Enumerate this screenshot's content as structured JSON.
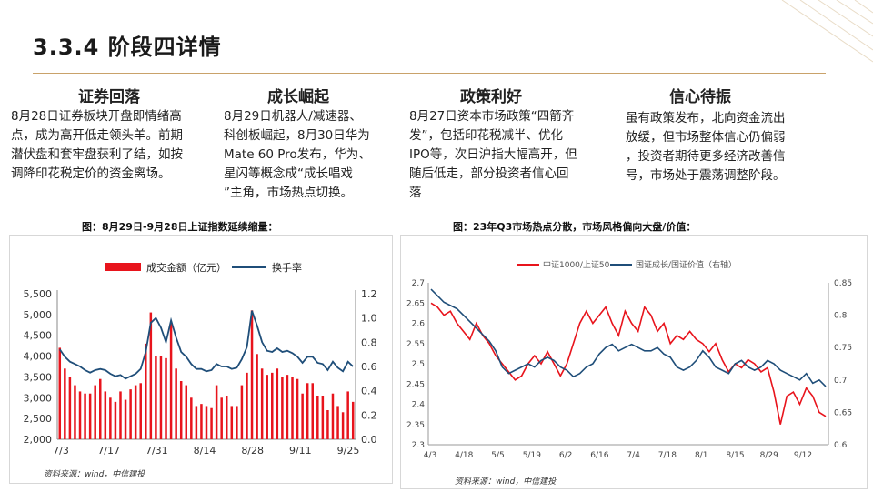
{
  "page": {
    "title": "3.3.4 阶段四详情"
  },
  "columns": [
    {
      "heading": "证券回落",
      "text": "8月28日证券板块开盘即情绪高\n点，成为高开低走领头羊。前期\n潜伏盘和套牢盘获利了结，如按\n调降印花税定价的资金离场。"
    },
    {
      "heading": "成长崛起",
      "text": "8月29日机器人/减速器、\n科创板崛起，8月30日华为\nMate 60 Pro发布，华为、\n星闪等概念成“成长唱戏\n”主角，市场热点切换。"
    },
    {
      "heading": "政策利好",
      "text": "8月27日资本市场政策“四箭齐\n发”，包括印花税减半、优化\nIPO等，次日沪指大幅高开，但\n随后低走，部分投资者信心回\n落"
    },
    {
      "heading": "信心待振",
      "text": "虽有政策发布，北向资金流出\n放缓，但市场整体信心仍偏弱\n，投资者期待更多经济改善信\n号，市场处于震荡调整阶段。"
    }
  ],
  "figures": {
    "left_caption": "图：8月29日-9月28日上证指数延续缩量：",
    "right_caption": "图：23年Q3市场热点分散，市场风格偏向大盘/价值：",
    "left_source": "资料来源：wind，中信建投",
    "right_source": "资料来源：wind，中信建投"
  },
  "colors": {
    "red": "#e8141c",
    "navy": "#1f4e79",
    "rule": "#c9a26a"
  },
  "chart_data": [
    {
      "type": "bar",
      "legend": [
        "成交金额（亿元）",
        "换手率"
      ],
      "x_tick_labels": [
        "7/3",
        "7/17",
        "7/31",
        "8/14",
        "8/28",
        "9/11",
        "9/25"
      ],
      "y_left_ticks": [
        "2,000",
        "2,500",
        "3,000",
        "3,500",
        "4,000",
        "4,500",
        "5,000",
        "5,500"
      ],
      "y_right_ticks": [
        "0.0",
        "0.2",
        "0.4",
        "0.6",
        "0.8",
        "1.0",
        "1.2"
      ],
      "ylim_left": [
        2000,
        5500
      ],
      "ylim_right": [
        0,
        1.2
      ],
      "series": [
        {
          "name": "成交金额（亿元）",
          "axis": "left",
          "kind": "bar",
          "values": [
            4200,
            3700,
            3500,
            3300,
            3150,
            3100,
            3100,
            3300,
            3450,
            3150,
            3000,
            2900,
            3150,
            2950,
            3200,
            3300,
            3350,
            4300,
            5050,
            4000,
            4000,
            3950,
            4800,
            3700,
            3400,
            3300,
            3000,
            2800,
            2850,
            2800,
            2750,
            3300,
            3000,
            3050,
            2800,
            2800,
            3300,
            3600,
            5100,
            4050,
            3700,
            3550,
            3600,
            3700,
            3500,
            3550,
            3500,
            3450,
            3100,
            3350,
            3350,
            3050,
            3050,
            2700,
            3100,
            2800,
            2650,
            3150,
            2900
          ]
        },
        {
          "name": "换手率",
          "axis": "right",
          "kind": "line",
          "values": [
            0.74,
            0.68,
            0.64,
            0.62,
            0.6,
            0.57,
            0.55,
            0.57,
            0.58,
            0.57,
            0.54,
            0.52,
            0.53,
            0.5,
            0.52,
            0.54,
            0.58,
            0.72,
            0.96,
            1.0,
            0.92,
            0.8,
            0.98,
            0.84,
            0.72,
            0.68,
            0.62,
            0.58,
            0.58,
            0.56,
            0.57,
            0.62,
            0.6,
            0.6,
            0.58,
            0.59,
            0.66,
            0.76,
            1.06,
            0.94,
            0.8,
            0.73,
            0.72,
            0.75,
            0.72,
            0.73,
            0.71,
            0.68,
            0.63,
            0.68,
            0.68,
            0.63,
            0.62,
            0.57,
            0.64,
            0.59,
            0.56,
            0.64,
            0.6
          ]
        }
      ]
    },
    {
      "type": "line",
      "legend": [
        "中证1000/上证50",
        "国证成长/国证价值（右轴）"
      ],
      "x_tick_labels": [
        "4/3",
        "4/18",
        "5/5",
        "5/19",
        "6/2",
        "6/16",
        "7/4",
        "7/18",
        "8/1",
        "8/15",
        "8/29",
        "9/12"
      ],
      "y_left_ticks": [
        "2.3",
        "2.35",
        "2.4",
        "2.45",
        "2.5",
        "2.55",
        "2.6",
        "2.65",
        "2.7"
      ],
      "y_right_ticks": [
        "0.6",
        "0.65",
        "0.7",
        "0.75",
        "0.8",
        "0.85"
      ],
      "ylim_left": [
        2.3,
        2.7
      ],
      "ylim_right": [
        0.6,
        0.85
      ],
      "series": [
        {
          "name": "中证1000/上证50",
          "axis": "left",
          "values": [
            2.65,
            2.64,
            2.62,
            2.63,
            2.6,
            2.58,
            2.56,
            2.6,
            2.57,
            2.55,
            2.52,
            2.5,
            2.48,
            2.46,
            2.47,
            2.5,
            2.52,
            2.5,
            2.53,
            2.5,
            2.47,
            2.5,
            2.55,
            2.6,
            2.63,
            2.6,
            2.62,
            2.64,
            2.6,
            2.57,
            2.63,
            2.6,
            2.58,
            2.64,
            2.62,
            2.58,
            2.6,
            2.55,
            2.57,
            2.56,
            2.58,
            2.56,
            2.55,
            2.53,
            2.55,
            2.51,
            2.48,
            2.5,
            2.49,
            2.51,
            2.5,
            2.48,
            2.49,
            2.43,
            2.35,
            2.42,
            2.43,
            2.4,
            2.44,
            2.42,
            2.38,
            2.37
          ]
        },
        {
          "name": "国证成长/国证价值（右轴）",
          "axis": "right",
          "values": [
            0.84,
            0.83,
            0.82,
            0.815,
            0.81,
            0.8,
            0.79,
            0.78,
            0.77,
            0.76,
            0.745,
            0.72,
            0.71,
            0.715,
            0.72,
            0.725,
            0.72,
            0.73,
            0.735,
            0.73,
            0.72,
            0.715,
            0.705,
            0.71,
            0.72,
            0.725,
            0.74,
            0.75,
            0.755,
            0.745,
            0.75,
            0.755,
            0.75,
            0.745,
            0.745,
            0.75,
            0.74,
            0.735,
            0.72,
            0.715,
            0.72,
            0.73,
            0.745,
            0.735,
            0.72,
            0.715,
            0.71,
            0.725,
            0.73,
            0.72,
            0.715,
            0.72,
            0.73,
            0.725,
            0.715,
            0.71,
            0.705,
            0.7,
            0.71,
            0.695,
            0.7,
            0.69
          ]
        }
      ]
    }
  ]
}
